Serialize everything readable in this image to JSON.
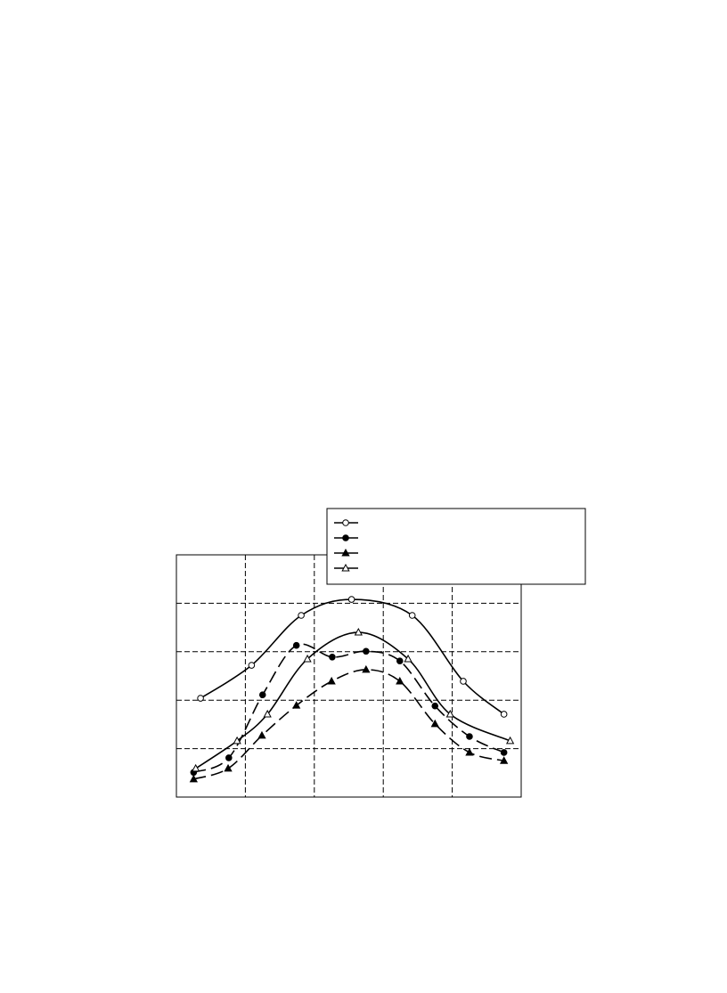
{
  "chart_data": {
    "type": "line",
    "xlim": [
      0,
      5
    ],
    "ylim": [
      0,
      5
    ],
    "xticks": [
      1,
      2,
      3,
      4
    ],
    "yticks": [
      1,
      2,
      3,
      4
    ],
    "grid": true,
    "legend": "top-right",
    "series": [
      {
        "color": "#000000",
        "marker": "circle",
        "marker_fill": "open",
        "line": "solid",
        "x": [
          0.35,
          1.09,
          1.81,
          2.54,
          3.42,
          4.16,
          4.75
        ],
        "values": [
          2.04,
          2.72,
          3.75,
          4.08,
          3.75,
          2.39,
          1.71
        ]
      },
      {
        "color": "#000000",
        "marker": "circle",
        "marker_fill": "filled",
        "line": "dashed",
        "x": [
          0.25,
          0.76,
          1.25,
          1.74,
          2.26,
          2.75,
          3.24,
          3.75,
          4.25,
          4.75
        ],
        "values": [
          0.51,
          0.81,
          2.11,
          3.13,
          2.89,
          3.01,
          2.81,
          1.88,
          1.25,
          0.92
        ]
      },
      {
        "color": "#000000",
        "marker": "triangle",
        "marker_fill": "filled",
        "line": "dashed",
        "x": [
          0.25,
          0.75,
          1.24,
          1.74,
          2.25,
          2.75,
          3.24,
          3.75,
          4.25,
          4.75
        ],
        "values": [
          0.37,
          0.59,
          1.27,
          1.89,
          2.39,
          2.63,
          2.39,
          1.51,
          0.92,
          0.75
        ]
      },
      {
        "color": "#000000",
        "marker": "triangle",
        "marker_fill": "open",
        "line": "solid",
        "x": [
          0.28,
          0.88,
          1.32,
          1.9,
          2.64,
          3.36,
          3.97,
          4.84
        ],
        "values": [
          0.59,
          1.16,
          1.71,
          2.85,
          3.4,
          2.85,
          1.71,
          1.16
        ]
      }
    ]
  }
}
